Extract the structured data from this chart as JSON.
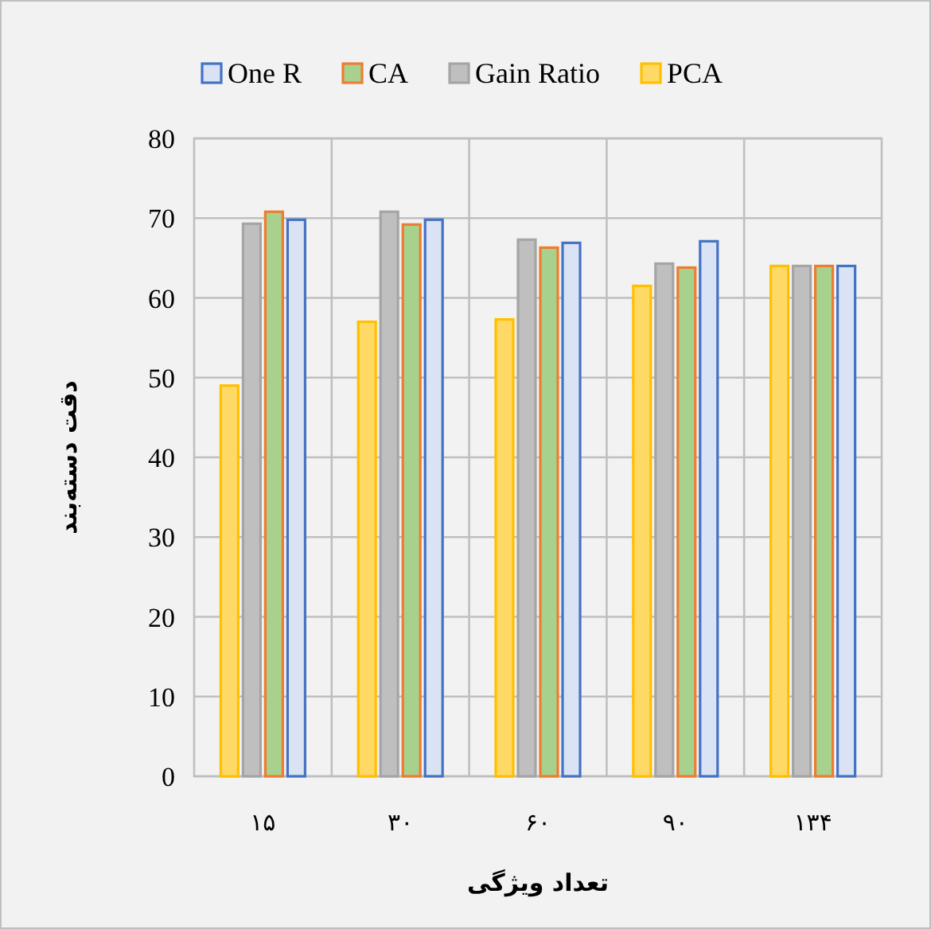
{
  "chart_data": {
    "type": "bar",
    "categories": [
      "۱۵",
      "۳۰",
      "۶۰",
      "۹۰",
      "۱۳۴"
    ],
    "xlabel": "تعداد ویژگی",
    "ylabel": "دقت دسته‌بند",
    "series": [
      {
        "name": "One R",
        "color": "#dae3f3",
        "values": [
          69.8,
          69.8,
          66.9,
          67.1,
          64.0
        ]
      },
      {
        "name": "CA",
        "color": "#a9d18e",
        "values": [
          70.8,
          69.2,
          66.3,
          63.8,
          64.0
        ]
      },
      {
        "name": "Gain Ratio",
        "color": "#bfbfbf",
        "values": [
          69.3,
          70.8,
          67.3,
          64.3,
          64.0
        ]
      },
      {
        "name": "PCA",
        "color": "#ffd966",
        "values": [
          49.0,
          57.0,
          57.3,
          61.5,
          64.0
        ]
      }
    ],
    "ylim": [
      0,
      80
    ],
    "yticks": [
      0,
      10,
      20,
      30,
      40,
      50,
      60,
      70,
      80
    ],
    "grid": true,
    "legend": "top"
  }
}
